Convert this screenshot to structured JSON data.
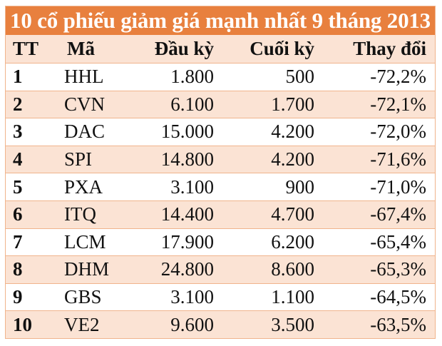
{
  "title": "10 cổ phiếu giảm giá mạnh nhất 9 tháng 2013",
  "colors": {
    "title_bg": "#e8803e",
    "alt_row_bg": "#fbe3d4",
    "border": "#f0b48c"
  },
  "headers": [
    "TT",
    "Mã",
    "Đầu kỳ",
    "Cuối kỳ",
    "Thay đổi"
  ],
  "rows": [
    [
      "1",
      "HHL",
      "1.800",
      "500",
      "-72,2%"
    ],
    [
      "2",
      "CVN",
      "6.100",
      "1.700",
      "-72,1%"
    ],
    [
      "3",
      "DAC",
      "15.000",
      "4.200",
      "-72,0%"
    ],
    [
      "4",
      "SPI",
      "14.800",
      "4.200",
      "-71,6%"
    ],
    [
      "5",
      "PXA",
      "3.100",
      "900",
      "-71,0%"
    ],
    [
      "6",
      "ITQ",
      "14.400",
      "4.700",
      "-67,4%"
    ],
    [
      "7",
      "LCM",
      "17.900",
      "6.200",
      "-65,4%"
    ],
    [
      "8",
      "DHM",
      "24.800",
      "8.600",
      "-65,3%"
    ],
    [
      "9",
      "GBS",
      "3.100",
      "1.100",
      "-64,5%"
    ],
    [
      "10",
      "VE2",
      "9.600",
      "3.500",
      "-63,5%"
    ]
  ]
}
